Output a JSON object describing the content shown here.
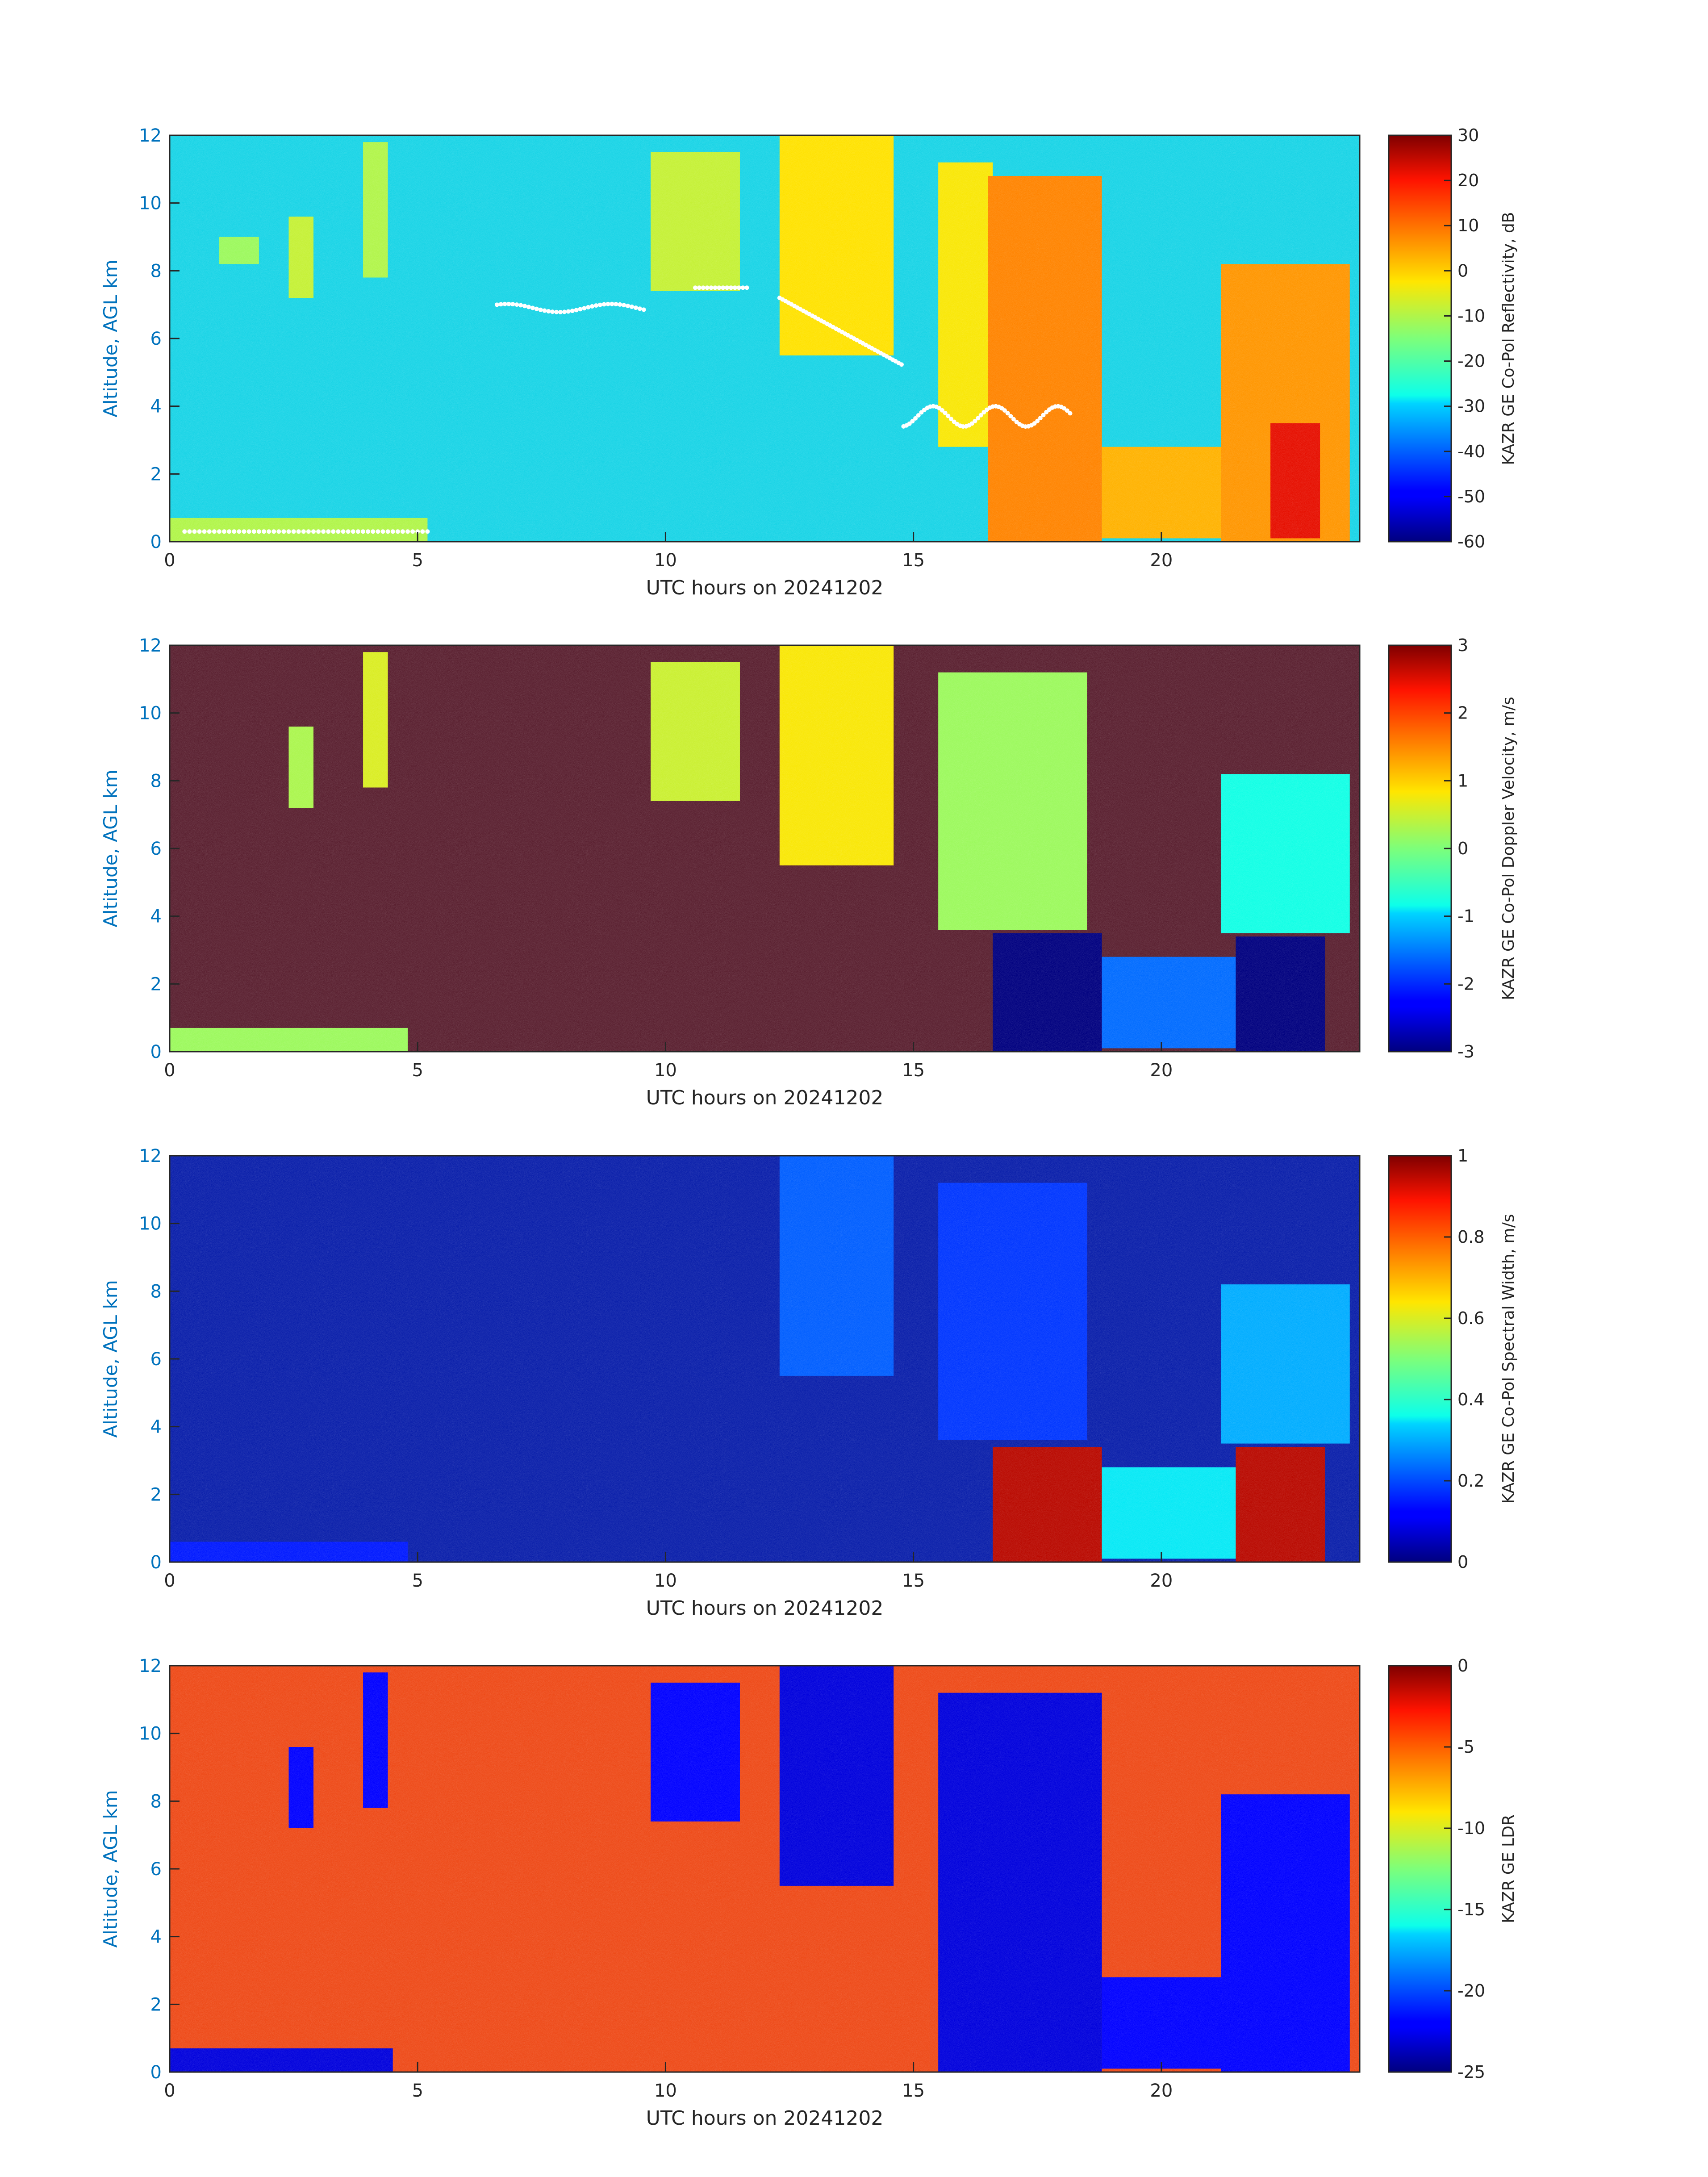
{
  "xlabel": "UTC hours on 20241202",
  "ylabel": "Altitude, AGL km",
  "xlim": [
    0,
    24
  ],
  "ylim": [
    0,
    12
  ],
  "xticks": [
    0,
    5,
    10,
    15,
    20
  ],
  "yticks": [
    0,
    2,
    4,
    6,
    8,
    10,
    12
  ],
  "colormap": "jet",
  "chart_data": [
    {
      "type": "heatmap",
      "quantity": "reflectivity",
      "xlabel": "UTC hours on 20241202",
      "ylabel": "Altitude, AGL km",
      "xlim": [
        0,
        24
      ],
      "ylim": [
        0,
        12
      ],
      "colorbar": {
        "label": "KAZR GE Co-Pol Reflectivity, dB",
        "range": [
          -60,
          30
        ],
        "ticks": [
          -60,
          -50,
          -40,
          -30,
          -20,
          -10,
          0,
          10,
          20,
          30
        ]
      },
      "background": "#19d4e6",
      "overlay_color": "#ffffff",
      "features": [
        {
          "x": [
            0,
            5.2
          ],
          "y": [
            0,
            0.7
          ],
          "value": -10
        },
        {
          "x": [
            2.4,
            2.9
          ],
          "y": [
            7.2,
            9.6
          ],
          "value": -8
        },
        {
          "x": [
            3.9,
            4.4
          ],
          "y": [
            7.8,
            11.8
          ],
          "value": -10
        },
        {
          "x": [
            1.0,
            1.8
          ],
          "y": [
            8.2,
            9.0
          ],
          "value": -12
        },
        {
          "x": [
            9.7,
            11.5
          ],
          "y": [
            7.4,
            11.5
          ],
          "value": -8
        },
        {
          "x": [
            12.3,
            14.6
          ],
          "y": [
            5.5,
            12.0
          ],
          "value": -2
        },
        {
          "x": [
            15.5,
            16.6
          ],
          "y": [
            2.8,
            11.2
          ],
          "value": -3
        },
        {
          "x": [
            16.5,
            18.8
          ],
          "y": [
            0.0,
            10.8
          ],
          "value": 8
        },
        {
          "x": [
            18.8,
            21.8
          ],
          "y": [
            0.1,
            2.8
          ],
          "value": 3
        },
        {
          "x": [
            21.2,
            23.8
          ],
          "y": [
            0.0,
            8.2
          ],
          "value": 6
        },
        {
          "x": [
            22.2,
            23.2
          ],
          "y": [
            0.1,
            3.5
          ],
          "value": 22
        }
      ]
    },
    {
      "type": "heatmap",
      "quantity": "doppler_velocity",
      "xlabel": "UTC hours on 20241202",
      "ylabel": "Altitude, AGL km",
      "xlim": [
        0,
        24
      ],
      "ylim": [
        0,
        12
      ],
      "colorbar": {
        "label": "KAZR GE Co-Pol Doppler Velocity, m/s",
        "range": [
          -3,
          3
        ],
        "ticks": [
          -3,
          -2,
          -1,
          0,
          1,
          2,
          3
        ]
      },
      "background": "#5a2030",
      "features": [
        {
          "x": [
            0,
            4.8
          ],
          "y": [
            0,
            0.7
          ],
          "value": 0.2
        },
        {
          "x": [
            2.4,
            2.9
          ],
          "y": [
            7.2,
            9.6
          ],
          "value": 0.3
        },
        {
          "x": [
            3.9,
            4.4
          ],
          "y": [
            7.8,
            11.8
          ],
          "value": 0.6
        },
        {
          "x": [
            9.7,
            11.5
          ],
          "y": [
            7.4,
            11.5
          ],
          "value": 0.5
        },
        {
          "x": [
            12.3,
            14.6
          ],
          "y": [
            5.5,
            12.0
          ],
          "value": 0.8
        },
        {
          "x": [
            15.5,
            18.5
          ],
          "y": [
            3.6,
            11.2
          ],
          "value": 0.2
        },
        {
          "x": [
            16.6,
            18.8
          ],
          "y": [
            0.0,
            3.5
          ],
          "value": -3.0
        },
        {
          "x": [
            18.8,
            21.8
          ],
          "y": [
            0.1,
            2.8
          ],
          "value": -1.6
        },
        {
          "x": [
            21.2,
            23.8
          ],
          "y": [
            3.5,
            8.2
          ],
          "value": -0.8
        },
        {
          "x": [
            21.5,
            23.3
          ],
          "y": [
            0.0,
            3.4
          ],
          "value": -3.0
        }
      ]
    },
    {
      "type": "heatmap",
      "quantity": "spectral_width",
      "xlabel": "UTC hours on 20241202",
      "ylabel": "Altitude, AGL km",
      "xlim": [
        0,
        24
      ],
      "ylim": [
        0,
        12
      ],
      "colorbar": {
        "label": "KAZR GE Co-Pol Spectral Width, m/s",
        "range": [
          0,
          1
        ],
        "ticks": [
          0,
          0.2,
          0.4,
          0.6,
          0.8,
          1
        ]
      },
      "background": "#0a1faa",
      "features": [
        {
          "x": [
            0,
            4.8
          ],
          "y": [
            0,
            0.6
          ],
          "value": 0.15
        },
        {
          "x": [
            12.3,
            14.6
          ],
          "y": [
            5.5,
            12.0
          ],
          "value": 0.22
        },
        {
          "x": [
            15.5,
            18.5
          ],
          "y": [
            3.6,
            11.2
          ],
          "value": 0.18
        },
        {
          "x": [
            16.6,
            18.8
          ],
          "y": [
            0.0,
            3.4
          ],
          "value": 0.95
        },
        {
          "x": [
            18.8,
            21.8
          ],
          "y": [
            0.1,
            2.8
          ],
          "value": 0.35
        },
        {
          "x": [
            21.2,
            23.8
          ],
          "y": [
            3.5,
            8.2
          ],
          "value": 0.3
        },
        {
          "x": [
            21.5,
            23.3
          ],
          "y": [
            0.0,
            3.4
          ],
          "value": 0.95
        }
      ]
    },
    {
      "type": "heatmap",
      "quantity": "ldr",
      "xlabel": "UTC hours on 20241202",
      "ylabel": "Altitude, AGL km",
      "xlim": [
        0,
        24
      ],
      "ylim": [
        0,
        12
      ],
      "colorbar": {
        "label": "KAZR GE LDR",
        "range": [
          -25,
          0
        ],
        "ticks": [
          0,
          -5,
          -10,
          -15,
          -20,
          -25
        ]
      },
      "background": "#ee4a18",
      "features": [
        {
          "x": [
            0,
            4.5
          ],
          "y": [
            0,
            0.7
          ],
          "value": -23
        },
        {
          "x": [
            2.4,
            2.9
          ],
          "y": [
            7.2,
            9.6
          ],
          "value": -22
        },
        {
          "x": [
            3.9,
            4.4
          ],
          "y": [
            7.8,
            11.8
          ],
          "value": -22
        },
        {
          "x": [
            9.7,
            11.5
          ],
          "y": [
            7.4,
            11.5
          ],
          "value": -22
        },
        {
          "x": [
            12.3,
            14.6
          ],
          "y": [
            5.5,
            12.0
          ],
          "value": -23
        },
        {
          "x": [
            15.5,
            18.8
          ],
          "y": [
            0.0,
            11.2
          ],
          "value": -23
        },
        {
          "x": [
            18.8,
            21.8
          ],
          "y": [
            0.1,
            2.8
          ],
          "value": -22
        },
        {
          "x": [
            21.2,
            23.8
          ],
          "y": [
            0.0,
            8.2
          ],
          "value": -22
        }
      ]
    }
  ]
}
